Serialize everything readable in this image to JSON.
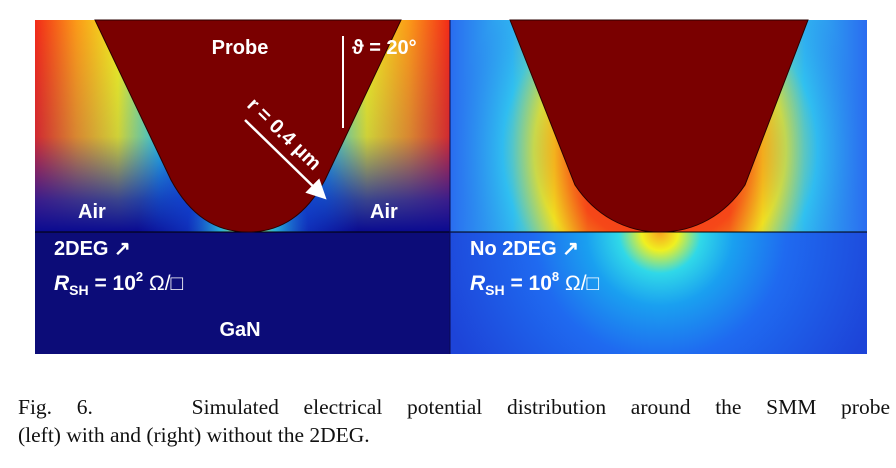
{
  "figure": {
    "left_panel": {
      "probe_label": "Probe",
      "angle_label": "ϑ = 20°",
      "radius_label": "r = 0.4 μm",
      "air_left": "Air",
      "air_right": "Air",
      "layer_label": "2DEG ↗",
      "rsh_symbol": "R",
      "rsh_subscript": "SH",
      "rsh_value": " = 10",
      "rsh_exponent": "2",
      "rsh_unit": " Ω/□",
      "substrate_label": "GaN"
    },
    "right_panel": {
      "layer_label": "No 2DEG ↗",
      "rsh_symbol": "R",
      "rsh_subscript": "SH",
      "rsh_value": " = 10",
      "rsh_exponent": "8",
      "rsh_unit": " Ω/□"
    },
    "colors": {
      "probe": "#7a0000",
      "field_deep": "#08086e",
      "field_blue": "#1e60f0",
      "field_cyan": "#14c8f0",
      "field_yellow": "#f5f01e",
      "field_red": "#f01e14",
      "label": "#ffffff"
    }
  },
  "caption": {
    "line1": "Fig. 6.    Simulated electrical potential distribution around the SMM probe",
    "line2": "(left) with and (right) without the 2DEG."
  }
}
